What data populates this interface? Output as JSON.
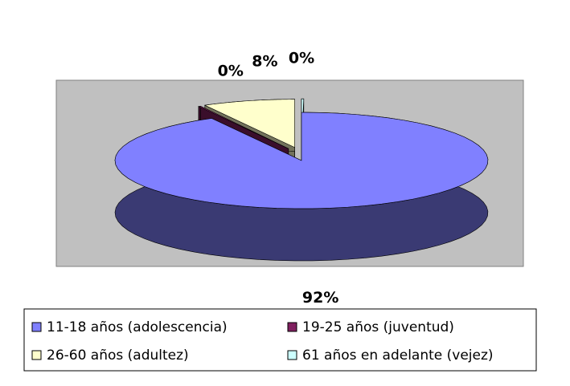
{
  "chart_data": {
    "type": "pie3d",
    "categories": [
      "11-18 años (adolescencia)",
      "19-25 años (juventud)",
      "26-60 años (adultez)",
      "61 años en adelante (vejez)"
    ],
    "values": [
      92,
      0,
      8,
      0
    ],
    "value_labels": [
      "92%",
      "0%",
      "8%",
      "0%"
    ],
    "colors": [
      "#8080ff",
      "#802060",
      "#ffffcc",
      "#ccffff"
    ],
    "legend": "bottom"
  }
}
